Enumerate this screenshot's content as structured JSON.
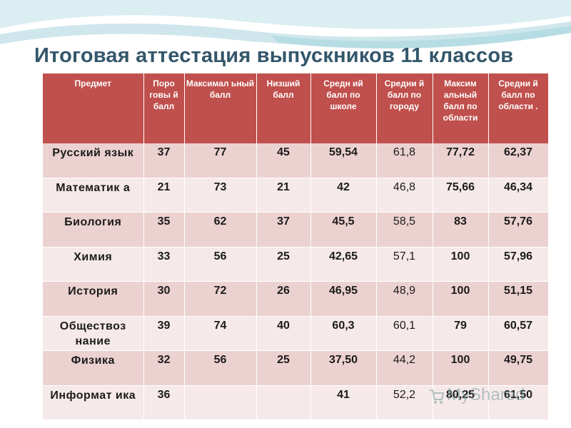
{
  "title": "Итоговая аттестация выпускников 11 классов",
  "headers": [
    "Предмет",
    "Поро говы й балл",
    "Максимал ьный балл",
    "Низший балл",
    "Средн ий балл по школе",
    "Средни й балл по городу",
    "Максим альный балл по области",
    "Средни й балл по области ."
  ],
  "rows": [
    {
      "subject": "Русский язык",
      "cells": [
        "37",
        "77",
        "45",
        "59,54",
        "61,8",
        "77,72",
        "62,37"
      ]
    },
    {
      "subject": "Математик а",
      "cells": [
        "21",
        "73",
        "21",
        "42",
        "46,8",
        "75,66",
        "46,34"
      ]
    },
    {
      "subject": "Биология",
      "cells": [
        "35",
        "62",
        "37",
        "45,5",
        "58,5",
        "83",
        "57,76"
      ]
    },
    {
      "subject": "Химия",
      "cells": [
        "33",
        "56",
        "25",
        "42,65",
        "57,1",
        "100",
        "57,96"
      ]
    },
    {
      "subject": "История",
      "cells": [
        "30",
        "72",
        "26",
        "46,95",
        "48,9",
        "100",
        "51,15"
      ]
    },
    {
      "subject": "Обществоз нание",
      "cells": [
        "39",
        "74",
        "40",
        "60,3",
        "60,1",
        "79",
        "60,57"
      ]
    },
    {
      "subject": "Физика",
      "cells": [
        "32",
        "56",
        "25",
        "37,50",
        "44,2",
        "100",
        "49,75"
      ]
    },
    {
      "subject": "Информат ика",
      "cells": [
        "36",
        "",
        "",
        "41",
        "52,2",
        "80,25",
        "61,50"
      ]
    }
  ],
  "watermark": "MyShared",
  "colors": {
    "header_bg": "#c0504d",
    "row_odd": "#ecd1d1",
    "row_even": "#f6e9e9",
    "title": "#33566a"
  }
}
